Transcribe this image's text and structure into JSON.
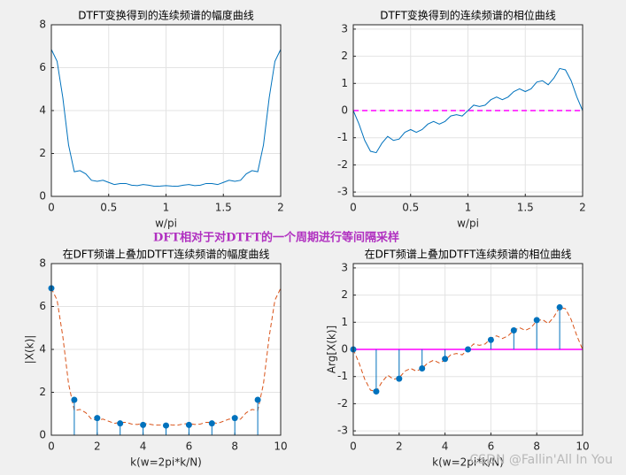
{
  "chart_data": [
    {
      "type": "line",
      "title": "DTFT变换得到的连续频谱的幅度曲线",
      "xlabel": "w/pi",
      "xlim": [
        0,
        2
      ],
      "xticks": [
        0,
        0.5,
        1,
        1.5,
        2
      ],
      "ylim": [
        0,
        8
      ],
      "yticks": [
        0,
        2,
        4,
        6,
        8
      ],
      "grid": true,
      "series": [
        {
          "type": "line",
          "color": "#0072bd",
          "dashed": false,
          "x": [
            0,
            0.05,
            0.1,
            0.15,
            0.2,
            0.25,
            0.3,
            0.35,
            0.4,
            0.45,
            0.5,
            0.55,
            0.6,
            0.65,
            0.7,
            0.75,
            0.8,
            0.85,
            0.9,
            0.95,
            1,
            1.05,
            1.1,
            1.15,
            1.2,
            1.25,
            1.3,
            1.35,
            1.4,
            1.45,
            1.5,
            1.55,
            1.6,
            1.65,
            1.7,
            1.75,
            1.8,
            1.85,
            1.9,
            1.95,
            2
          ],
          "values": [
            6.85,
            6.3,
            4.6,
            2.4,
            1.15,
            1.2,
            1.05,
            0.75,
            0.7,
            0.75,
            0.65,
            0.55,
            0.6,
            0.6,
            0.52,
            0.5,
            0.55,
            0.52,
            0.47,
            0.48,
            0.5,
            0.48,
            0.47,
            0.52,
            0.55,
            0.5,
            0.52,
            0.6,
            0.6,
            0.55,
            0.65,
            0.75,
            0.7,
            0.75,
            1.05,
            1.2,
            1.15,
            2.4,
            4.6,
            6.3,
            6.85
          ]
        }
      ]
    },
    {
      "type": "line",
      "title": "DTFT变换得到的连续频谱的相位曲线",
      "xlabel": "w/pi",
      "xlim": [
        0,
        2
      ],
      "xticks": [
        0,
        0.5,
        1,
        1.5,
        2
      ],
      "ylim": [
        -3.16,
        3.16
      ],
      "yticks": [
        -3,
        -2,
        -1,
        0,
        1,
        2,
        3
      ],
      "grid": true,
      "hline": {
        "value": 0,
        "color": "#ff00ff",
        "dashed": true
      },
      "series": [
        {
          "type": "line",
          "color": "#0072bd",
          "dashed": false,
          "x": [
            0,
            0.05,
            0.1,
            0.15,
            0.2,
            0.25,
            0.3,
            0.35,
            0.4,
            0.45,
            0.5,
            0.55,
            0.6,
            0.65,
            0.7,
            0.75,
            0.8,
            0.85,
            0.9,
            0.95,
            1,
            1.05,
            1.1,
            1.15,
            1.2,
            1.25,
            1.3,
            1.35,
            1.4,
            1.45,
            1.5,
            1.55,
            1.6,
            1.65,
            1.7,
            1.75,
            1.8,
            1.85,
            1.9,
            1.95,
            2
          ],
          "values": [
            0,
            -0.5,
            -1.1,
            -1.5,
            -1.55,
            -1.2,
            -0.95,
            -1.1,
            -1.05,
            -0.8,
            -0.7,
            -0.8,
            -0.7,
            -0.5,
            -0.4,
            -0.5,
            -0.4,
            -0.2,
            -0.15,
            -0.2,
            0,
            0.2,
            0.15,
            0.2,
            0.4,
            0.5,
            0.4,
            0.5,
            0.7,
            0.8,
            0.7,
            0.8,
            1.05,
            1.1,
            0.95,
            1.2,
            1.55,
            1.5,
            1.1,
            0.5,
            0
          ]
        }
      ]
    },
    {
      "type": "stem",
      "title": "在DFT频谱上叠加DTFT连续频谱的幅度曲线",
      "xlabel": "k(w=2pi*k/N)",
      "ylabel": "|X(k)|",
      "xlim": [
        0,
        10
      ],
      "xticks": [
        0,
        2,
        4,
        6,
        8,
        10
      ],
      "ylim": [
        0,
        8
      ],
      "yticks": [
        0,
        2,
        4,
        6,
        8
      ],
      "grid": true,
      "series": [
        {
          "type": "stem",
          "color": "#0072bd",
          "x": [
            0,
            1,
            2,
            3,
            4,
            5,
            6,
            7,
            8,
            9
          ],
          "values": [
            6.85,
            1.65,
            0.8,
            0.55,
            0.48,
            0.45,
            0.48,
            0.55,
            0.8,
            1.65
          ]
        },
        {
          "type": "line",
          "color": "#d95319",
          "dashed": true,
          "x": [
            0,
            0.25,
            0.5,
            0.75,
            1,
            1.25,
            1.5,
            1.75,
            2,
            2.25,
            2.5,
            2.75,
            3,
            3.25,
            3.5,
            3.75,
            4,
            4.25,
            4.5,
            4.75,
            5,
            5.25,
            5.5,
            5.75,
            6,
            6.25,
            6.5,
            6.75,
            7,
            7.25,
            7.5,
            7.75,
            8,
            8.25,
            8.5,
            8.75,
            9,
            9.25,
            9.5,
            9.75,
            10
          ],
          "values": [
            6.85,
            6.3,
            4.6,
            2.4,
            1.15,
            1.2,
            1.05,
            0.75,
            0.7,
            0.75,
            0.65,
            0.55,
            0.6,
            0.6,
            0.52,
            0.5,
            0.55,
            0.52,
            0.47,
            0.48,
            0.5,
            0.48,
            0.47,
            0.52,
            0.55,
            0.5,
            0.52,
            0.6,
            0.6,
            0.55,
            0.65,
            0.75,
            0.7,
            0.75,
            1.05,
            1.2,
            1.15,
            2.4,
            4.6,
            6.3,
            6.85
          ]
        }
      ]
    },
    {
      "type": "stem",
      "title": "在DFT频谱上叠加DTFT连续频谱的相位曲线",
      "xlabel": "k(w=2pi*k/N)",
      "ylabel": "Arg[X(k)]",
      "xlim": [
        0,
        10
      ],
      "xticks": [
        0,
        2,
        4,
        6,
        8,
        10
      ],
      "ylim": [
        -3.16,
        3.16
      ],
      "yticks": [
        -3,
        -2,
        -1,
        0,
        1,
        2,
        3
      ],
      "grid": true,
      "hline": {
        "value": 0,
        "color": "#ff00ff",
        "dashed": false
      },
      "series": [
        {
          "type": "stem",
          "color": "#0072bd",
          "x": [
            0,
            1,
            2,
            3,
            4,
            5,
            6,
            7,
            8,
            9
          ],
          "values": [
            0,
            -1.55,
            -1.08,
            -0.7,
            -0.35,
            0,
            0.35,
            0.7,
            1.08,
            1.55
          ]
        },
        {
          "type": "line",
          "color": "#d95319",
          "dashed": true,
          "x": [
            0,
            0.25,
            0.5,
            0.75,
            1,
            1.25,
            1.5,
            1.75,
            2,
            2.25,
            2.5,
            2.75,
            3,
            3.25,
            3.5,
            3.75,
            4,
            4.25,
            4.5,
            4.75,
            5,
            5.25,
            5.5,
            5.75,
            6,
            6.25,
            6.5,
            6.75,
            7,
            7.25,
            7.5,
            7.75,
            8,
            8.25,
            8.5,
            8.75,
            9,
            9.25,
            9.5,
            9.75,
            10
          ],
          "values": [
            0,
            -0.5,
            -1.1,
            -1.5,
            -1.55,
            -1.2,
            -0.95,
            -1.1,
            -1.05,
            -0.8,
            -0.7,
            -0.8,
            -0.7,
            -0.5,
            -0.4,
            -0.5,
            -0.4,
            -0.2,
            -0.15,
            -0.2,
            0,
            0.2,
            0.15,
            0.2,
            0.4,
            0.5,
            0.4,
            0.5,
            0.7,
            0.8,
            0.7,
            0.8,
            1.05,
            1.1,
            0.95,
            1.2,
            1.55,
            1.5,
            1.1,
            0.5,
            0
          ]
        }
      ]
    }
  ],
  "annotation": "DFT相对于对DTFT的一个周期进行等间隔采样",
  "watermark": "CSDN @Fallin'All In You"
}
